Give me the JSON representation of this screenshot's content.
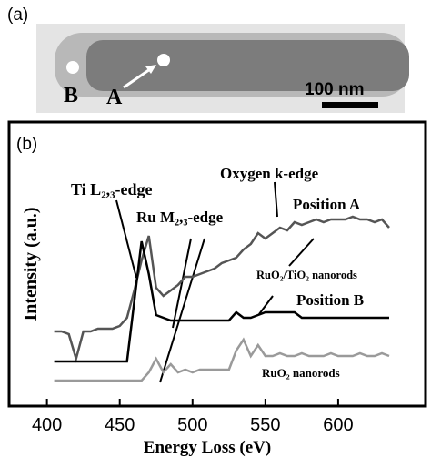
{
  "panel_a": {
    "label": "(a)",
    "point_b": "B",
    "point_a": "A",
    "scale": "100 nm"
  },
  "chart_data": {
    "type": "line",
    "panel_label": "(b)",
    "x_label": "Energy Loss (eV)",
    "y_label": "Intensity (a.u.)",
    "xlim": [
      374,
      660
    ],
    "xticks": [
      400,
      450,
      500,
      550,
      600
    ],
    "ylim": [
      0,
      10
    ],
    "x": [
      405,
      410,
      415,
      420,
      425,
      430,
      435,
      440,
      445,
      450,
      455,
      460,
      465,
      470,
      475,
      480,
      485,
      490,
      495,
      500,
      505,
      510,
      515,
      520,
      525,
      530,
      535,
      540,
      545,
      550,
      555,
      560,
      565,
      570,
      575,
      580,
      585,
      590,
      595,
      600,
      605,
      610,
      615,
      620,
      625,
      630,
      635
    ],
    "series": [
      {
        "name": "Position A",
        "color": "#555555",
        "values": [
          2.7,
          2.7,
          2.6,
          1.7,
          2.7,
          2.7,
          2.8,
          2.8,
          2.8,
          2.9,
          3.2,
          4.2,
          5.3,
          6.2,
          4.3,
          4.0,
          4.2,
          4.4,
          4.7,
          4.7,
          4.8,
          4.9,
          5.0,
          5.2,
          5.3,
          5.4,
          5.7,
          5.9,
          6.3,
          6.1,
          6.3,
          6.5,
          6.4,
          6.7,
          6.6,
          6.7,
          6.8,
          6.7,
          6.8,
          6.8,
          6.8,
          6.9,
          6.8,
          6.8,
          6.7,
          6.8,
          6.5
        ]
      },
      {
        "name": "Position B",
        "color": "#000000",
        "values": [
          1.6,
          1.6,
          1.6,
          1.6,
          1.6,
          1.6,
          1.6,
          1.6,
          1.6,
          1.6,
          1.6,
          3.8,
          6.0,
          4.8,
          3.3,
          3.2,
          3.1,
          3.1,
          3.1,
          3.1,
          3.1,
          3.1,
          3.1,
          3.1,
          3.1,
          3.4,
          3.2,
          3.2,
          3.3,
          3.4,
          3.4,
          3.4,
          3.4,
          3.4,
          3.2,
          3.2,
          3.2,
          3.2,
          3.2,
          3.2,
          3.2,
          3.2,
          3.2,
          3.2,
          3.2,
          3.2,
          3.2
        ]
      },
      {
        "name": "RuO₂ nanorods",
        "color": "#9a9a9a",
        "values": [
          0.9,
          0.9,
          0.9,
          0.9,
          0.9,
          0.9,
          0.9,
          0.9,
          0.9,
          0.9,
          0.9,
          0.9,
          0.9,
          1.2,
          1.7,
          1.2,
          1.5,
          1.2,
          1.3,
          1.2,
          1.3,
          1.3,
          1.3,
          1.3,
          1.3,
          2.0,
          2.4,
          1.8,
          2.2,
          1.8,
          1.8,
          1.9,
          1.8,
          1.8,
          1.9,
          1.8,
          1.8,
          1.8,
          1.9,
          1.8,
          1.8,
          1.8,
          1.9,
          1.8,
          1.8,
          1.9,
          1.8
        ]
      }
    ],
    "annotations": [
      "Ti L₂,₃-edge",
      "Ru M₂,₃-edge",
      "Oxygen k-edge",
      "RuO₂/TiO₂ nanorods"
    ]
  }
}
